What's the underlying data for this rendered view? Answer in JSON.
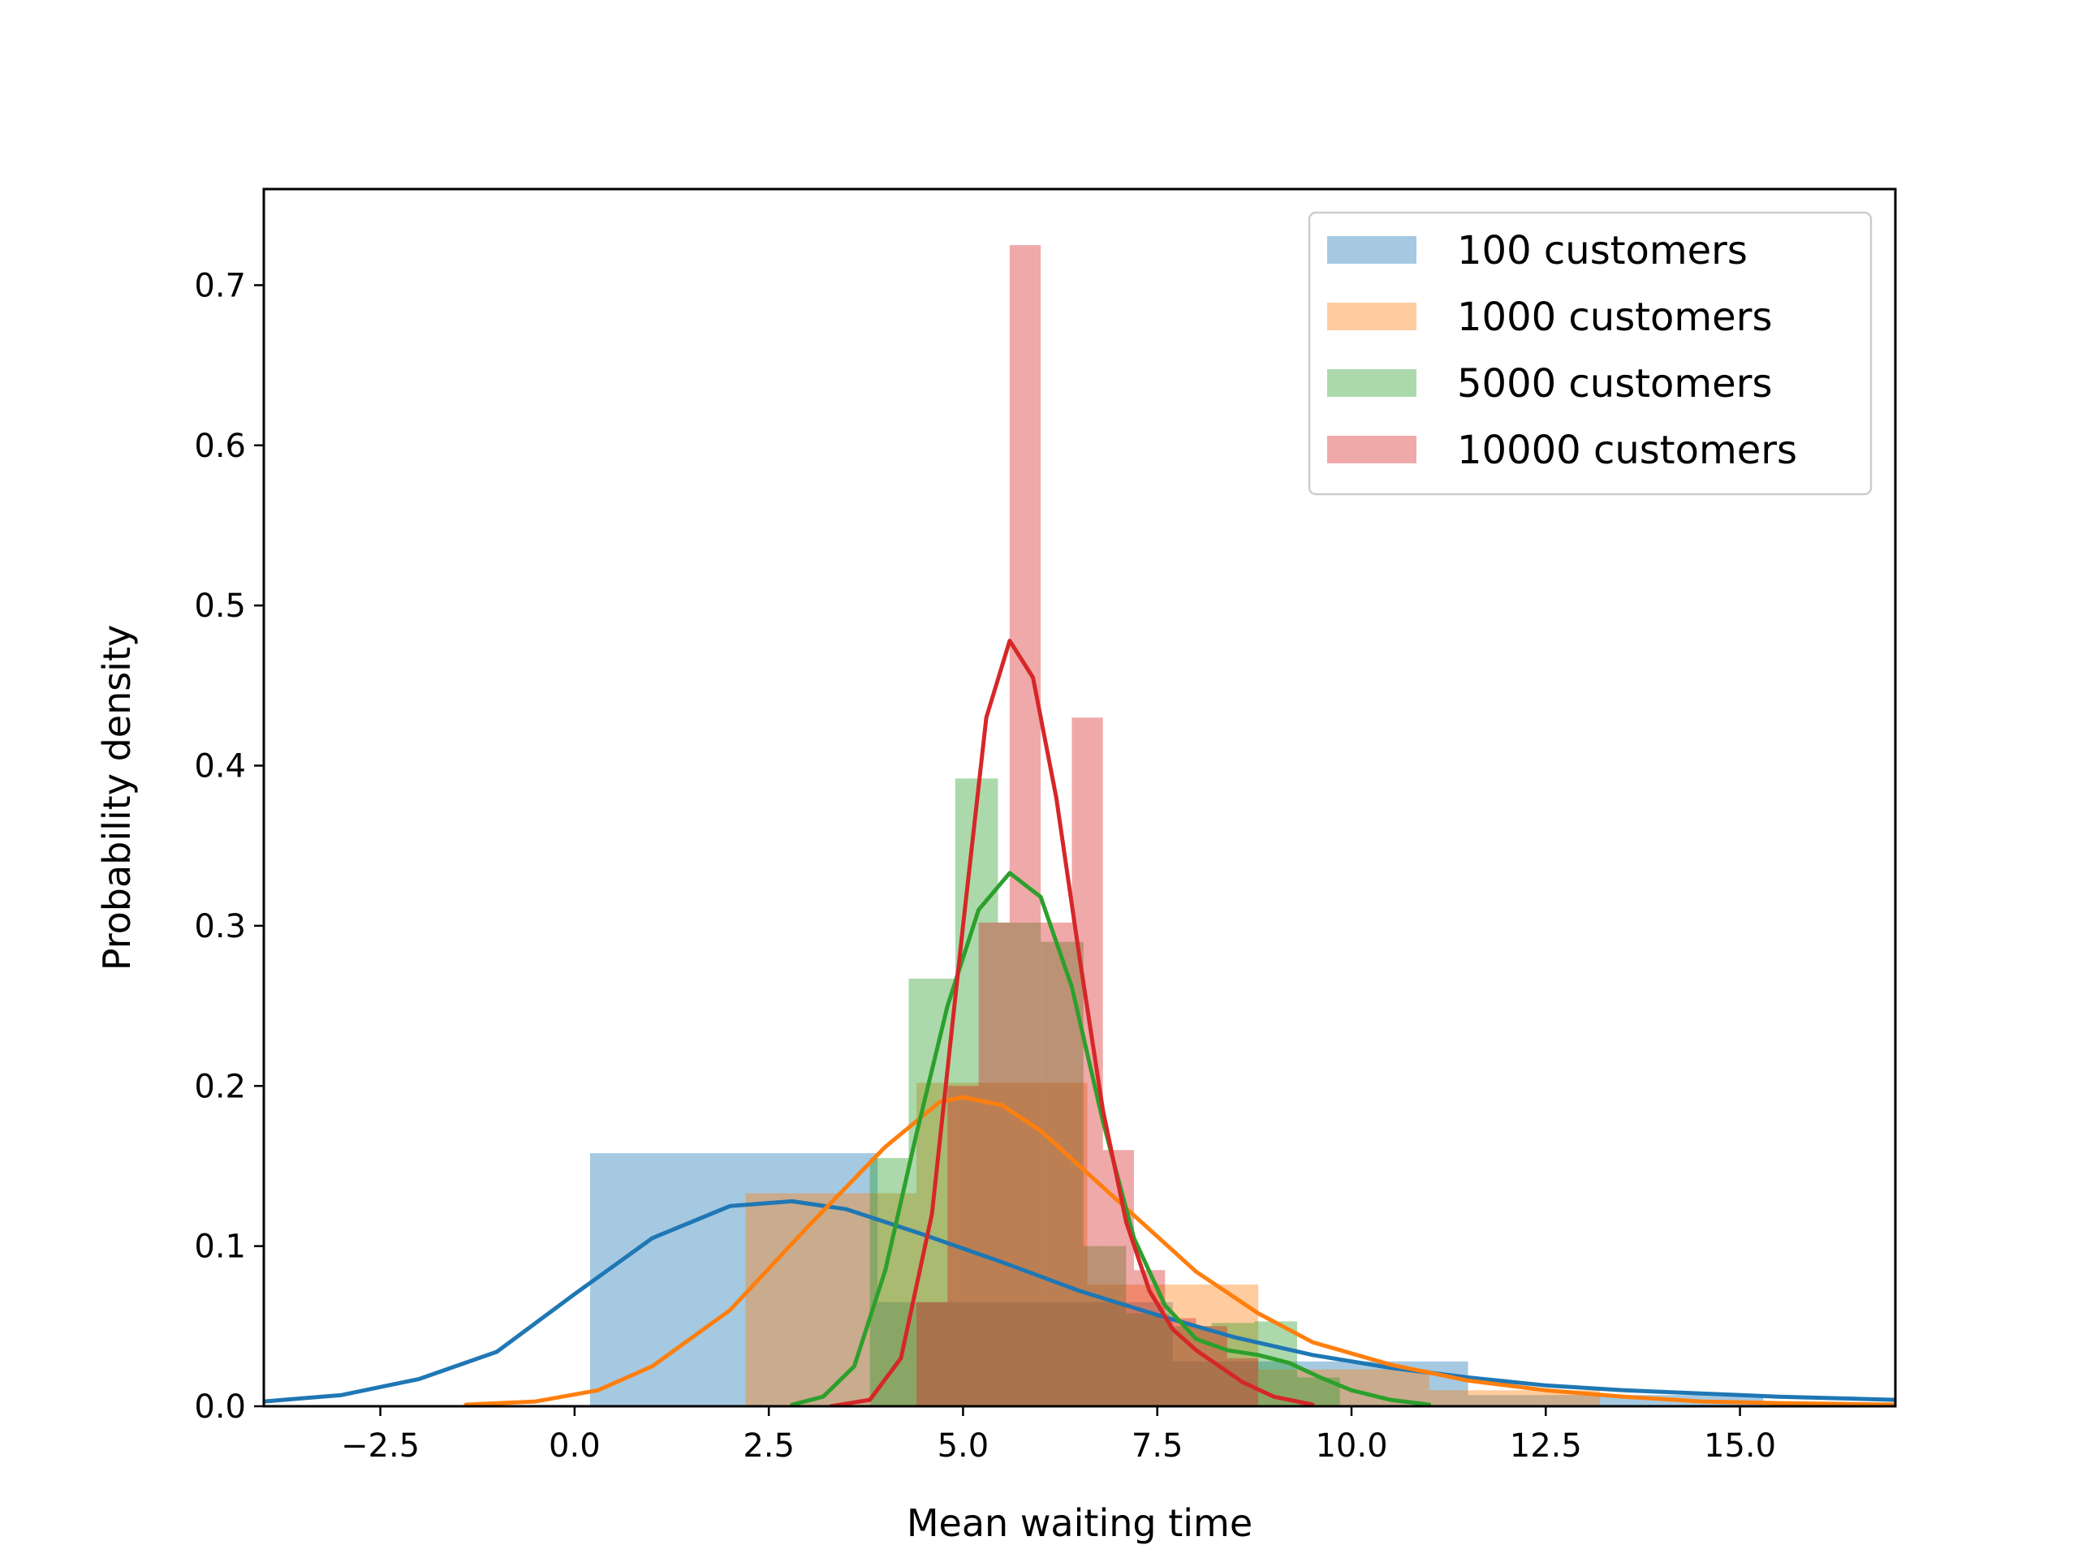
{
  "chart_data": {
    "type": "histogram",
    "xlabel": "Mean waiting time",
    "ylabel": "Probability density",
    "xlim": [
      -4.0,
      17.0
    ],
    "ylim": [
      0.0,
      0.76
    ],
    "xticks": [
      {
        "value": -2.5,
        "label": "−2.5"
      },
      {
        "value": 0.0,
        "label": "0.0"
      },
      {
        "value": 2.5,
        "label": "2.5"
      },
      {
        "value": 5.0,
        "label": "5.0"
      },
      {
        "value": 7.5,
        "label": "7.5"
      },
      {
        "value": 10.0,
        "label": "10.0"
      },
      {
        "value": 12.5,
        "label": "12.5"
      },
      {
        "value": 15.0,
        "label": "15.0"
      }
    ],
    "yticks": [
      {
        "value": 0.0,
        "label": "0.0"
      },
      {
        "value": 0.1,
        "label": "0.1"
      },
      {
        "value": 0.2,
        "label": "0.2"
      },
      {
        "value": 0.3,
        "label": "0.3"
      },
      {
        "value": 0.4,
        "label": "0.4"
      },
      {
        "value": 0.5,
        "label": "0.5"
      },
      {
        "value": 0.6,
        "label": "0.6"
      },
      {
        "value": 0.7,
        "label": "0.7"
      }
    ],
    "legend_position": "top-right",
    "grid": false,
    "series": [
      {
        "name": "100 customers",
        "color": "#1f77b4",
        "bins": [
          {
            "x0": 0.2,
            "x1": 3.9,
            "density": 0.158
          },
          {
            "x0": 3.9,
            "x1": 7.7,
            "density": 0.065
          },
          {
            "x0": 7.7,
            "x1": 11.5,
            "density": 0.028
          },
          {
            "x0": 11.5,
            "x1": 15.3,
            "density": 0.007
          }
        ],
        "kde": [
          [
            -4.0,
            0.003
          ],
          [
            -3.0,
            0.007
          ],
          [
            -2.0,
            0.017
          ],
          [
            -1.0,
            0.034
          ],
          [
            0.0,
            0.07
          ],
          [
            1.0,
            0.105
          ],
          [
            2.0,
            0.125
          ],
          [
            2.8,
            0.128
          ],
          [
            3.5,
            0.123
          ],
          [
            4.5,
            0.107
          ],
          [
            5.5,
            0.09
          ],
          [
            6.5,
            0.072
          ],
          [
            7.5,
            0.057
          ],
          [
            8.5,
            0.043
          ],
          [
            9.5,
            0.032
          ],
          [
            10.5,
            0.024
          ],
          [
            11.5,
            0.018
          ],
          [
            12.5,
            0.013
          ],
          [
            13.5,
            0.01
          ],
          [
            14.5,
            0.008
          ],
          [
            15.5,
            0.006
          ],
          [
            17.0,
            0.004
          ]
        ]
      },
      {
        "name": "1000 customers",
        "color": "#ff7f0e",
        "bins": [
          {
            "x0": 2.2,
            "x1": 4.4,
            "density": 0.133
          },
          {
            "x0": 4.4,
            "x1": 6.6,
            "density": 0.202
          },
          {
            "x0": 6.6,
            "x1": 8.8,
            "density": 0.076
          },
          {
            "x0": 8.8,
            "x1": 11.0,
            "density": 0.023
          },
          {
            "x0": 11.0,
            "x1": 13.2,
            "density": 0.01
          }
        ],
        "kde": [
          [
            -1.4,
            0.001
          ],
          [
            -0.5,
            0.003
          ],
          [
            0.3,
            0.01
          ],
          [
            1.0,
            0.025
          ],
          [
            2.0,
            0.06
          ],
          [
            3.0,
            0.112
          ],
          [
            4.0,
            0.162
          ],
          [
            4.7,
            0.19
          ],
          [
            5.0,
            0.193
          ],
          [
            5.5,
            0.188
          ],
          [
            6.0,
            0.172
          ],
          [
            7.0,
            0.128
          ],
          [
            8.0,
            0.084
          ],
          [
            8.8,
            0.058
          ],
          [
            9.5,
            0.04
          ],
          [
            10.5,
            0.026
          ],
          [
            11.5,
            0.016
          ],
          [
            12.5,
            0.01
          ],
          [
            13.5,
            0.006
          ],
          [
            14.5,
            0.003
          ],
          [
            15.5,
            0.002
          ],
          [
            17.0,
            0.001
          ]
        ]
      },
      {
        "name": "5000 customers",
        "color": "#2ca02c",
        "bins": [
          {
            "x0": 3.8,
            "x1": 4.3,
            "density": 0.155
          },
          {
            "x0": 4.3,
            "x1": 4.9,
            "density": 0.267
          },
          {
            "x0": 4.9,
            "x1": 5.45,
            "density": 0.392
          },
          {
            "x0": 5.45,
            "x1": 6.0,
            "density": 0.302
          },
          {
            "x0": 6.0,
            "x1": 6.55,
            "density": 0.29
          },
          {
            "x0": 6.55,
            "x1": 7.1,
            "density": 0.1
          },
          {
            "x0": 7.1,
            "x1": 7.65,
            "density": 0.058
          },
          {
            "x0": 7.65,
            "x1": 8.2,
            "density": 0.05
          },
          {
            "x0": 8.2,
            "x1": 8.75,
            "density": 0.052
          },
          {
            "x0": 8.75,
            "x1": 9.3,
            "density": 0.053
          },
          {
            "x0": 9.3,
            "x1": 9.85,
            "density": 0.018
          }
        ],
        "kde": [
          [
            2.8,
            0.001
          ],
          [
            3.2,
            0.006
          ],
          [
            3.6,
            0.025
          ],
          [
            4.0,
            0.085
          ],
          [
            4.4,
            0.17
          ],
          [
            4.8,
            0.25
          ],
          [
            5.2,
            0.31
          ],
          [
            5.6,
            0.333
          ],
          [
            6.0,
            0.318
          ],
          [
            6.4,
            0.262
          ],
          [
            6.8,
            0.178
          ],
          [
            7.2,
            0.105
          ],
          [
            7.6,
            0.063
          ],
          [
            8.0,
            0.042
          ],
          [
            8.4,
            0.035
          ],
          [
            8.8,
            0.032
          ],
          [
            9.2,
            0.027
          ],
          [
            9.6,
            0.018
          ],
          [
            10.0,
            0.01
          ],
          [
            10.5,
            0.004
          ],
          [
            11.0,
            0.001
          ]
        ]
      },
      {
        "name": "10000 customers",
        "color": "#d62728",
        "bins": [
          {
            "x0": 4.4,
            "x1": 4.8,
            "density": 0.065
          },
          {
            "x0": 4.8,
            "x1": 5.2,
            "density": 0.2
          },
          {
            "x0": 5.2,
            "x1": 5.6,
            "density": 0.302
          },
          {
            "x0": 5.6,
            "x1": 6.0,
            "density": 0.725
          },
          {
            "x0": 6.0,
            "x1": 6.4,
            "density": 0.302
          },
          {
            "x0": 6.4,
            "x1": 6.8,
            "density": 0.43
          },
          {
            "x0": 6.8,
            "x1": 7.2,
            "density": 0.16
          },
          {
            "x0": 7.2,
            "x1": 7.6,
            "density": 0.085
          },
          {
            "x0": 7.6,
            "x1": 8.0,
            "density": 0.055
          },
          {
            "x0": 8.0,
            "x1": 8.4,
            "density": 0.05
          },
          {
            "x0": 8.4,
            "x1": 8.8,
            "density": 0.03
          }
        ],
        "kde": [
          [
            3.3,
            0.0
          ],
          [
            3.8,
            0.004
          ],
          [
            4.2,
            0.03
          ],
          [
            4.6,
            0.12
          ],
          [
            5.0,
            0.3
          ],
          [
            5.3,
            0.43
          ],
          [
            5.6,
            0.478
          ],
          [
            5.9,
            0.455
          ],
          [
            6.2,
            0.38
          ],
          [
            6.5,
            0.28
          ],
          [
            6.8,
            0.185
          ],
          [
            7.1,
            0.115
          ],
          [
            7.4,
            0.072
          ],
          [
            7.7,
            0.048
          ],
          [
            8.0,
            0.035
          ],
          [
            8.3,
            0.025
          ],
          [
            8.6,
            0.015
          ],
          [
            9.0,
            0.006
          ],
          [
            9.5,
            0.001
          ]
        ]
      }
    ]
  }
}
